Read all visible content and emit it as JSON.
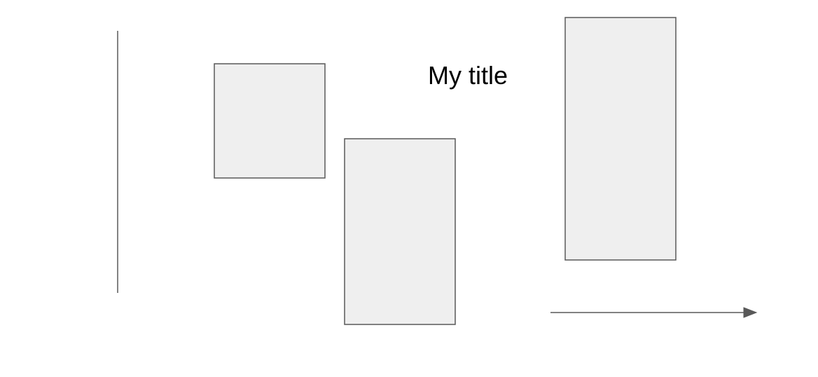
{
  "diagram": {
    "title": "My title",
    "colors": {
      "shape_fill": "#efefef",
      "stroke": "#595959",
      "text": "#000000",
      "background": "#ffffff"
    },
    "shapes": [
      {
        "name": "rectangle-left",
        "kind": "rectangle"
      },
      {
        "name": "rectangle-middle",
        "kind": "rectangle"
      },
      {
        "name": "rectangle-right",
        "kind": "rectangle"
      }
    ],
    "connectors": [
      {
        "name": "vertical-line",
        "kind": "line"
      },
      {
        "name": "horizontal-arrow",
        "kind": "arrow"
      }
    ]
  }
}
